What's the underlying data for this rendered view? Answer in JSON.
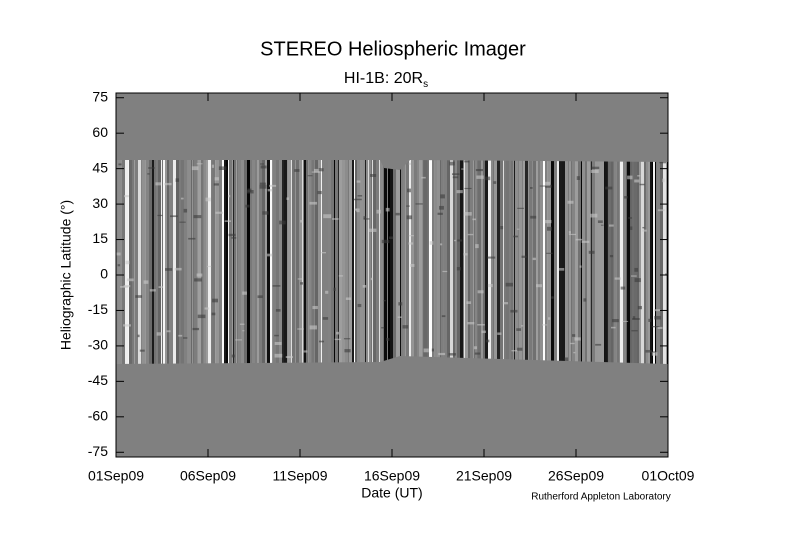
{
  "chart_data": {
    "type": "image",
    "title": "STEREO Heliospheric Imager",
    "subtitle": "HI-1B: 20R",
    "subtitle_subscript": "s",
    "xlabel": "Date (UT)",
    "ylabel": "Heliographic Latitude (°)",
    "credit": "Rutherford Appleton Laboratory",
    "xlim": [
      "2009-09-01",
      "2009-10-01"
    ],
    "xticks": [
      {
        "value": "2009-09-01",
        "label": "01Sep09"
      },
      {
        "value": "2009-09-06",
        "label": "06Sep09"
      },
      {
        "value": "2009-09-11",
        "label": "11Sep09"
      },
      {
        "value": "2009-09-16",
        "label": "16Sep09"
      },
      {
        "value": "2009-09-21",
        "label": "21Sep09"
      },
      {
        "value": "2009-09-26",
        "label": "26Sep09"
      },
      {
        "value": "2009-10-01",
        "label": "01Oct09"
      }
    ],
    "ylim": [
      -77,
      77
    ],
    "yticks": [
      -75,
      -60,
      -45,
      -30,
      -15,
      0,
      15,
      30,
      45,
      60,
      75
    ],
    "background_color": "#808080"
  }
}
